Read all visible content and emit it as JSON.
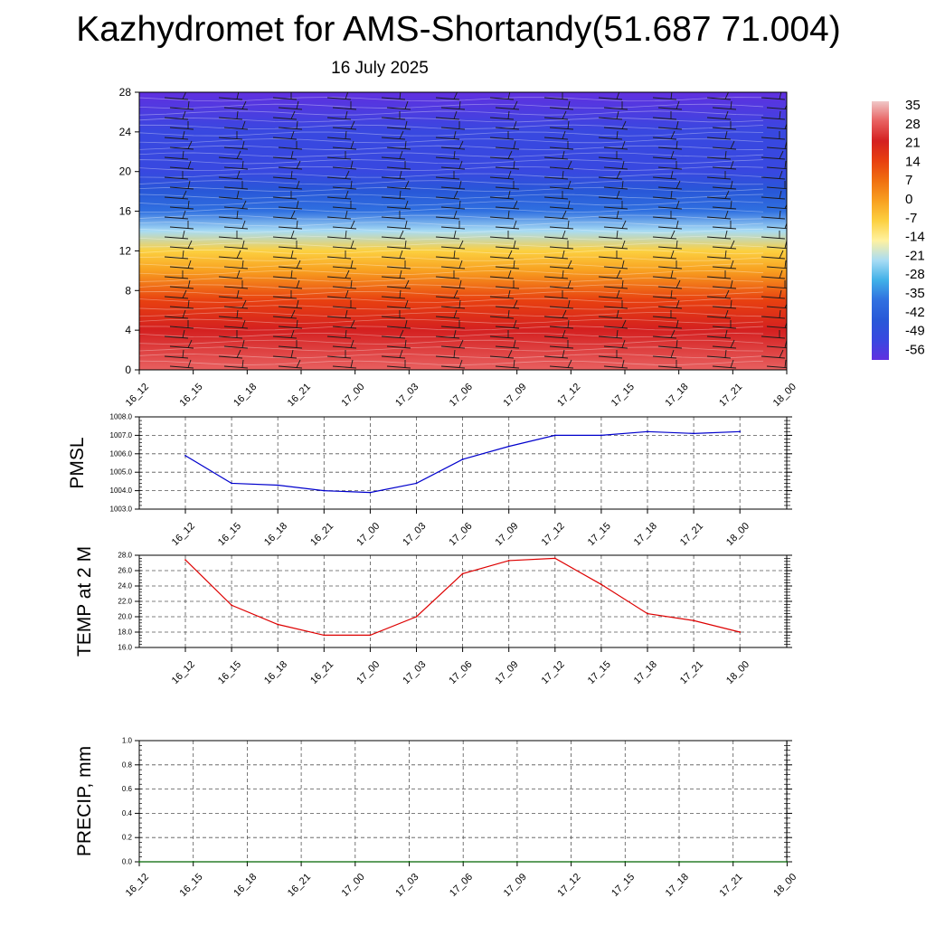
{
  "title": "Kazhydromet for AMS-Shortandy(51.687 71.004)",
  "subtitle": "16 July 2025",
  "chart_data": [
    {
      "type": "heatmap",
      "description_ref": "vertical temperature cross-section with wind barbs",
      "x_ticks": [
        "16_12",
        "16_15",
        "16_18",
        "16_21",
        "17_00",
        "17_03",
        "17_06",
        "17_09",
        "17_12",
        "17_15",
        "17_18",
        "17_21",
        "18_00"
      ],
      "y_ticks": [
        "0",
        "4",
        "8",
        "12",
        "16",
        "20",
        "24",
        "28"
      ],
      "ylim": [
        0,
        28
      ],
      "color_scale": {
        "labels": [
          "35",
          "28",
          "21",
          "14",
          "7",
          "0",
          "-7",
          "-14",
          "-21",
          "-28",
          "-35",
          "-42",
          "-49",
          "-56"
        ],
        "colors": [
          "#f0c8c8",
          "#e86060",
          "#d42020",
          "#e84010",
          "#f07010",
          "#f8a020",
          "#fcd040",
          "#fff2a0",
          "#a8dcf4",
          "#40b0e8",
          "#3070e0",
          "#2858d8",
          "#3848e0",
          "#6030e0"
        ]
      },
      "levels": [
        {
          "y": 0,
          "value": 30
        },
        {
          "y": 4,
          "value": 24
        },
        {
          "y": 7,
          "value": 14
        },
        {
          "y": 10,
          "value": 3
        },
        {
          "y": 12,
          "value": -8
        },
        {
          "y": 14,
          "value": -20
        },
        {
          "y": 16,
          "value": -33
        },
        {
          "y": 18,
          "value": -44
        },
        {
          "y": 20,
          "value": -50
        },
        {
          "y": 24,
          "value": -52
        },
        {
          "y": 28,
          "value": -56
        }
      ]
    },
    {
      "type": "line",
      "ylabel": "PMSL",
      "x": [
        "16_12",
        "16_15",
        "16_18",
        "16_21",
        "17_00",
        "17_03",
        "17_06",
        "17_09",
        "17_12",
        "17_15",
        "17_18",
        "17_21",
        "18_00"
      ],
      "y_ticks": [
        "1003.0",
        "1004.0",
        "1005.0",
        "1006.0",
        "1007.0",
        "1008.0"
      ],
      "ylim": [
        1003.0,
        1008.0
      ],
      "series": [
        {
          "values": [
            1005.9,
            1004.4,
            1004.3,
            1004.0,
            1003.9,
            1004.4,
            1005.7,
            1006.4,
            1007.0,
            1007.0,
            1007.2,
            1007.1,
            1007.2
          ],
          "color": "#0000cc"
        }
      ]
    },
    {
      "type": "line",
      "ylabel": "TEMP at 2 M",
      "x": [
        "16_12",
        "16_15",
        "16_18",
        "16_21",
        "17_00",
        "17_03",
        "17_06",
        "17_09",
        "17_12",
        "17_15",
        "17_18",
        "17_21",
        "18_00"
      ],
      "y_ticks": [
        "16.0",
        "18.0",
        "20.0",
        "22.0",
        "24.0",
        "26.0",
        "28.0"
      ],
      "ylim": [
        16.0,
        28.0
      ],
      "series": [
        {
          "values": [
            27.4,
            21.5,
            19.0,
            17.6,
            17.6,
            20.0,
            25.6,
            27.3,
            27.6,
            24.2,
            20.4,
            19.5,
            18.0
          ],
          "color": "#dd0000"
        }
      ]
    },
    {
      "type": "line",
      "ylabel": "PRECIP, mm",
      "x_ticks": [
        "16_12",
        "16_15",
        "16_18",
        "16_21",
        "17_00",
        "17_03",
        "17_06",
        "17_09",
        "17_12",
        "17_15",
        "17_18",
        "17_21",
        "18_00"
      ],
      "y_ticks": [
        "0.0",
        "0.2",
        "0.4",
        "0.6",
        "0.8",
        "1.0"
      ],
      "ylim": [
        0.0,
        1.0
      ],
      "series": [
        {
          "values": [
            0,
            0,
            0,
            0,
            0,
            0,
            0,
            0,
            0,
            0,
            0,
            0,
            0
          ],
          "color": "#006400"
        }
      ]
    }
  ]
}
